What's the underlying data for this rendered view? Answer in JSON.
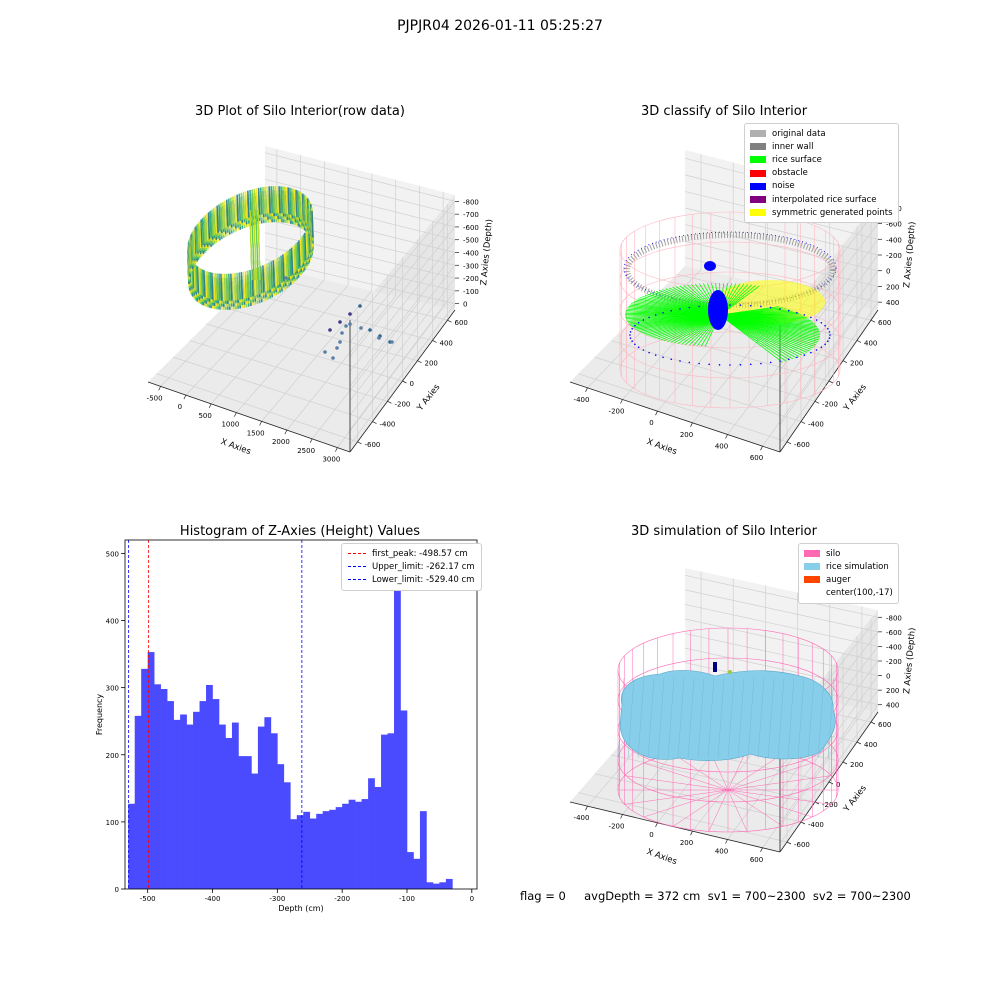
{
  "figure": {
    "suptitle": "PJPJR04 2026-01-11 05:25:27",
    "footer": "flag = 0     avgDepth = 372 cm  sv1 = 700~2300  sv2 = 700~2300"
  },
  "chart_data": [
    {
      "type": "scatter",
      "projection": "3d",
      "title": "3D Plot of Silo Interior(row data)",
      "xlabel": "X Axies",
      "ylabel": "Y Axies",
      "zlabel": "Z Axies (Depth)",
      "x_ticks": [
        "-500",
        "0",
        "500",
        "1000",
        "1500",
        "2000",
        "2500",
        "3000"
      ],
      "y_ticks": [
        "600",
        "400",
        "200",
        "0",
        "-200",
        "-400",
        "-600"
      ],
      "z_ticks": [
        "0",
        "-100",
        "-200",
        "-300",
        "-400",
        "-500",
        "-600",
        "-700",
        "-800"
      ],
      "colormap": "viridis",
      "outlier_points": [
        {
          "x": 1800,
          "y": -350,
          "z": -620
        },
        {
          "x": 1900,
          "y": -300,
          "z": -600
        },
        {
          "x": 2000,
          "y": -260,
          "z": -590
        },
        {
          "x": 2150,
          "y": -230,
          "z": -585
        },
        {
          "x": 2400,
          "y": -200,
          "z": -600
        },
        {
          "x": 2700,
          "y": -150,
          "z": -640
        },
        {
          "x": 2900,
          "y": -120,
          "z": -660
        }
      ]
    },
    {
      "type": "scatter",
      "projection": "3d",
      "title": "3D classify of Silo Interior",
      "xlabel": "X Axies",
      "ylabel": "Y Axies",
      "zlabel": "Z Axies (Depth)",
      "x_ticks": [
        "-400",
        "-200",
        "0",
        "200",
        "400",
        "600"
      ],
      "y_ticks": [
        "600",
        "400",
        "200",
        "0",
        "-200",
        "-400",
        "-600"
      ],
      "z_ticks": [
        "400",
        "200",
        "0",
        "-200",
        "-400",
        "-600",
        "-800"
      ],
      "legend": [
        {
          "label": "original data",
          "color": "#b0b0b0"
        },
        {
          "label": "inner wall",
          "color": "#808080"
        },
        {
          "label": "rice surface",
          "color": "#00ff00"
        },
        {
          "label": "obstacle",
          "color": "#ff0000"
        },
        {
          "label": "noise",
          "color": "#0000ff"
        },
        {
          "label": "interpolated rice surface",
          "color": "#800080"
        },
        {
          "label": "symmetric generated points",
          "color": "#ffff00"
        }
      ]
    },
    {
      "type": "bar",
      "title": "Histogram of Z-Axies (Height) Values",
      "xlabel": "Depth (cm)",
      "ylabel": "Frequency",
      "bar_color": "#4a4aff",
      "bin_width": 10,
      "xlim": [
        -535,
        8
      ],
      "ylim": [
        0,
        520
      ],
      "x_ticks": [
        -500,
        -400,
        -300,
        -200,
        -100,
        0
      ],
      "y_ticks": [
        0,
        100,
        200,
        300,
        400,
        500
      ],
      "bin_starts": [
        -530,
        -520,
        -510,
        -500,
        -490,
        -480,
        -470,
        -460,
        -450,
        -440,
        -430,
        -420,
        -410,
        -400,
        -390,
        -380,
        -370,
        -360,
        -350,
        -340,
        -330,
        -320,
        -310,
        -300,
        -290,
        -280,
        -270,
        -260,
        -250,
        -240,
        -230,
        -220,
        -210,
        -200,
        -190,
        -180,
        -170,
        -160,
        -150,
        -140,
        -130,
        -120,
        -110,
        -100,
        -90,
        -80,
        -70,
        -60,
        -50,
        -40,
        -30,
        -20
      ],
      "values": [
        127,
        258,
        328,
        353,
        305,
        298,
        280,
        252,
        260,
        245,
        264,
        280,
        304,
        283,
        245,
        225,
        248,
        198,
        198,
        172,
        242,
        256,
        232,
        186,
        159,
        104,
        110,
        115,
        105,
        112,
        116,
        118,
        122,
        127,
        133,
        130,
        134,
        165,
        152,
        230,
        232,
        495,
        266,
        55,
        45,
        116,
        10,
        8,
        10,
        15,
        0,
        0
      ],
      "reference_lines": [
        {
          "label": "first_peak: -498.57 cm",
          "x": -498.57,
          "color": "#ff0000"
        },
        {
          "label": "Upper_limit: -262.17 cm",
          "x": -262.17,
          "color": "#0000ff"
        },
        {
          "label": "Lower_limit: -529.40 cm",
          "x": -529.4,
          "color": "#0000ff"
        }
      ]
    },
    {
      "type": "surface",
      "projection": "3d",
      "title": "3D simulation of Silo Interior",
      "xlabel": "X Axies",
      "ylabel": "Y Axies",
      "zlabel": "Z Axies (Depth)",
      "x_ticks": [
        "-400",
        "-200",
        "0",
        "200",
        "400",
        "600"
      ],
      "y_ticks": [
        "600",
        "400",
        "200",
        "0",
        "-200",
        "-400",
        "-600"
      ],
      "z_ticks": [
        "400",
        "200",
        "0",
        "-200",
        "-400",
        "-600",
        "-800"
      ],
      "legend": [
        {
          "label": "silo",
          "color": "#ff69b4"
        },
        {
          "label": "rice simulation",
          "color": "#87ceeb"
        },
        {
          "label": "auger",
          "color": "#ff4500"
        },
        {
          "label": "center(100,-17)",
          "color": ""
        }
      ]
    }
  ]
}
